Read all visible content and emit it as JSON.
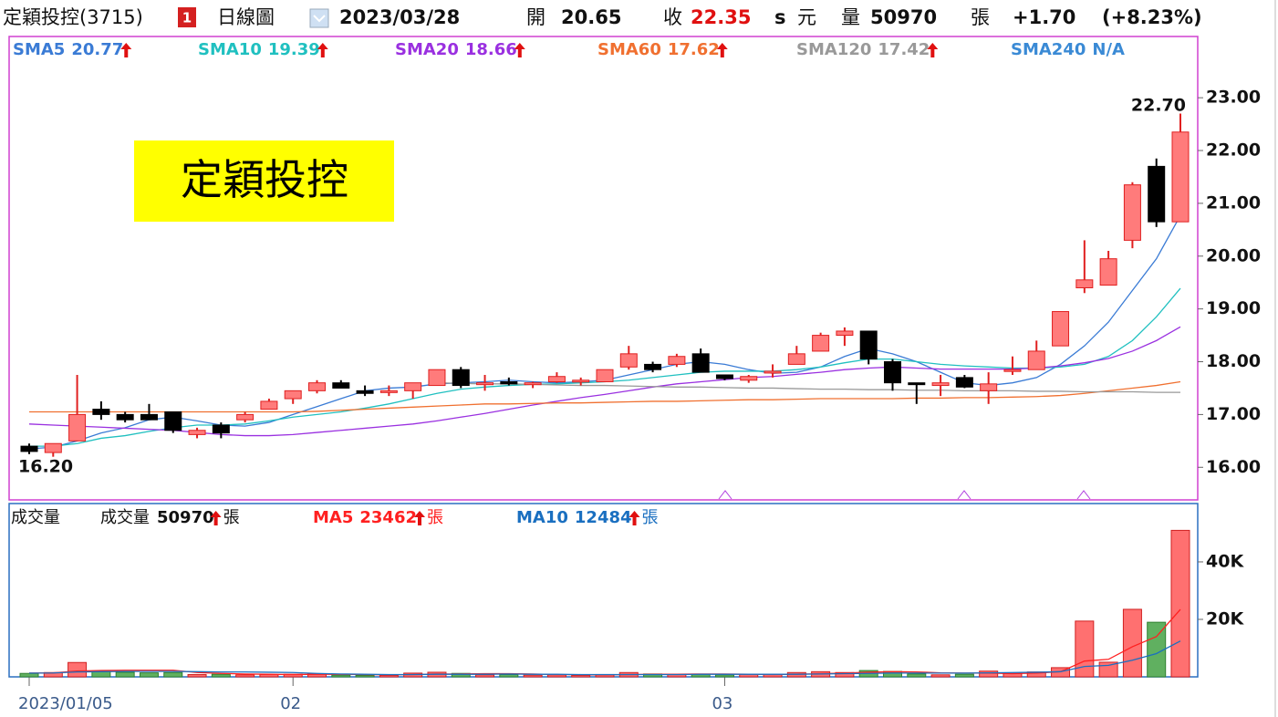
{
  "header": {
    "name": "定穎投控(3715)",
    "badge": "1",
    "period": "日線圖",
    "date": "2023/03/28",
    "open_label": "開",
    "open": "20.65",
    "close_label": "收",
    "close": "22.35",
    "s": "s",
    "currency": "元",
    "volume_label": "量",
    "volume": "50970",
    "volume_unit": "張",
    "change": "+1.70",
    "change_pct": "(+8.23%)"
  },
  "chart_data": [
    {
      "type": "candlestick",
      "annotation": "定穎投控",
      "high_label": "22.70",
      "low_label": "16.20",
      "up_color": "#ff7b7b",
      "up_edge": "#e02020",
      "down_color": "#000000",
      "categories": [
        "2023/01/05",
        null,
        null,
        null,
        null,
        null,
        null,
        null,
        null,
        null,
        null,
        "02",
        null,
        null,
        null,
        null,
        null,
        null,
        null,
        null,
        null,
        null,
        null,
        null,
        null,
        null,
        null,
        null,
        null,
        "03",
        null,
        null,
        null,
        null,
        null,
        null,
        null,
        null,
        null,
        null,
        null,
        null,
        null,
        null,
        null,
        null,
        null,
        null,
        null
      ],
      "open": [
        16.4,
        16.28,
        16.5,
        17.1,
        17.0,
        17.0,
        17.05,
        16.62,
        16.8,
        16.9,
        17.1,
        17.3,
        17.45,
        17.6,
        17.45,
        17.45,
        17.45,
        17.55,
        17.85,
        17.6,
        17.62,
        17.57,
        17.62,
        17.62,
        17.62,
        17.9,
        17.95,
        17.95,
        18.15,
        17.75,
        17.65,
        17.8,
        17.95,
        18.2,
        18.5,
        18.58,
        18.0,
        17.6,
        17.55,
        17.7,
        17.45,
        17.82,
        17.85,
        18.3,
        19.4,
        19.45,
        20.3,
        21.7,
        20.65
      ],
      "high": [
        16.45,
        16.45,
        17.75,
        17.25,
        17.05,
        17.2,
        17.05,
        16.75,
        16.85,
        17.05,
        17.3,
        17.45,
        17.65,
        17.65,
        17.55,
        17.55,
        17.6,
        17.85,
        17.9,
        17.75,
        17.7,
        17.62,
        17.8,
        17.7,
        17.85,
        18.3,
        18.0,
        18.15,
        18.25,
        17.75,
        17.75,
        17.95,
        18.3,
        18.55,
        18.65,
        18.58,
        18.05,
        17.6,
        17.75,
        17.75,
        17.8,
        18.1,
        18.4,
        18.95,
        20.3,
        20.1,
        21.4,
        21.85,
        22.7
      ],
      "low": [
        16.25,
        16.2,
        16.5,
        16.9,
        16.85,
        16.9,
        16.65,
        16.55,
        16.55,
        16.85,
        17.1,
        17.2,
        17.4,
        17.5,
        17.35,
        17.35,
        17.3,
        17.55,
        17.5,
        17.45,
        17.55,
        17.5,
        17.6,
        17.55,
        17.62,
        17.85,
        17.8,
        17.9,
        17.8,
        17.65,
        17.6,
        17.7,
        17.95,
        18.2,
        18.3,
        17.95,
        17.45,
        17.2,
        17.35,
        17.5,
        17.2,
        17.75,
        17.85,
        18.3,
        19.3,
        19.45,
        20.15,
        20.55,
        20.65
      ],
      "close": [
        16.3,
        16.45,
        17.0,
        17.0,
        16.9,
        16.9,
        16.7,
        16.7,
        16.65,
        17.0,
        17.25,
        17.45,
        17.6,
        17.5,
        17.4,
        17.45,
        17.6,
        17.85,
        17.55,
        17.6,
        17.58,
        17.6,
        17.72,
        17.65,
        17.85,
        18.15,
        17.85,
        18.1,
        17.8,
        17.68,
        17.72,
        17.82,
        18.15,
        18.5,
        18.58,
        18.05,
        17.6,
        17.58,
        17.6,
        17.52,
        17.58,
        17.85,
        18.2,
        18.95,
        19.55,
        19.95,
        21.35,
        20.65,
        22.35
      ],
      "series": [
        {
          "name": "SMA5",
          "value": "20.77",
          "color": "#3a7bd5",
          "values": [
            16.35,
            16.38,
            16.5,
            16.65,
            16.75,
            16.9,
            16.95,
            16.88,
            16.8,
            16.78,
            16.85,
            17.0,
            17.15,
            17.3,
            17.45,
            17.5,
            17.52,
            17.58,
            17.6,
            17.62,
            17.65,
            17.62,
            17.6,
            17.62,
            17.65,
            17.75,
            17.85,
            17.95,
            18.0,
            17.95,
            17.85,
            17.78,
            17.8,
            17.9,
            18.1,
            18.25,
            18.15,
            18.0,
            17.8,
            17.6,
            17.55,
            17.6,
            17.7,
            17.95,
            18.3,
            18.75,
            19.35,
            19.95,
            20.77
          ]
        },
        {
          "name": "SMA10",
          "value": "19.39",
          "color": "#20c0c0",
          "values": [
            16.4,
            16.4,
            16.45,
            16.55,
            16.6,
            16.68,
            16.75,
            16.8,
            16.8,
            16.82,
            16.88,
            16.95,
            17.0,
            17.05,
            17.12,
            17.2,
            17.3,
            17.4,
            17.48,
            17.52,
            17.55,
            17.57,
            17.58,
            17.6,
            17.62,
            17.65,
            17.7,
            17.75,
            17.8,
            17.82,
            17.82,
            17.82,
            17.85,
            17.9,
            17.98,
            18.05,
            18.05,
            18.0,
            17.95,
            17.92,
            17.9,
            17.88,
            17.88,
            17.9,
            17.95,
            18.1,
            18.4,
            18.85,
            19.39
          ]
        },
        {
          "name": "SMA20",
          "value": "18.66",
          "color": "#9a30e0",
          "values": [
            16.82,
            16.8,
            16.78,
            16.76,
            16.74,
            16.72,
            16.7,
            16.66,
            16.62,
            16.6,
            16.6,
            16.62,
            16.66,
            16.7,
            16.74,
            16.78,
            16.82,
            16.88,
            16.95,
            17.02,
            17.1,
            17.18,
            17.25,
            17.32,
            17.38,
            17.45,
            17.52,
            17.58,
            17.62,
            17.66,
            17.7,
            17.72,
            17.76,
            17.8,
            17.85,
            17.88,
            17.9,
            17.88,
            17.86,
            17.86,
            17.86,
            17.86,
            17.88,
            17.92,
            17.98,
            18.06,
            18.2,
            18.4,
            18.66
          ]
        },
        {
          "name": "SMA60",
          "value": "17.62",
          "color": "#f07030",
          "values": [
            17.05,
            17.05,
            17.05,
            17.05,
            17.05,
            17.05,
            17.05,
            17.05,
            17.05,
            17.05,
            17.05,
            17.05,
            17.06,
            17.08,
            17.1,
            17.12,
            17.14,
            17.16,
            17.18,
            17.2,
            17.2,
            17.21,
            17.22,
            17.22,
            17.23,
            17.24,
            17.25,
            17.25,
            17.26,
            17.27,
            17.28,
            17.28,
            17.29,
            17.3,
            17.3,
            17.3,
            17.3,
            17.31,
            17.31,
            17.32,
            17.32,
            17.33,
            17.34,
            17.36,
            17.4,
            17.45,
            17.5,
            17.55,
            17.62
          ]
        },
        {
          "name": "SMA120",
          "value": "17.42",
          "color": "#999999",
          "values": [
            null,
            null,
            null,
            null,
            null,
            null,
            null,
            null,
            null,
            null,
            null,
            null,
            null,
            null,
            null,
            null,
            null,
            17.6,
            17.59,
            17.58,
            17.58,
            17.57,
            17.56,
            17.55,
            17.55,
            17.54,
            17.53,
            17.52,
            17.52,
            17.51,
            17.5,
            17.5,
            17.49,
            17.48,
            17.48,
            17.47,
            17.47,
            17.46,
            17.46,
            17.45,
            17.45,
            17.45,
            17.44,
            17.44,
            17.43,
            17.43,
            17.43,
            17.42,
            17.42
          ]
        },
        {
          "name": "SMA240",
          "value": "N/A",
          "color": "#3a8ad5"
        }
      ],
      "ylim": [
        15.4,
        24.16
      ],
      "yticks": [
        {
          "value": 16,
          "label": "16.00"
        },
        {
          "value": 17,
          "label": "17.00"
        },
        {
          "value": 18,
          "label": "18.00"
        },
        {
          "value": 19,
          "label": "19.00"
        },
        {
          "value": 20,
          "label": "20.00"
        },
        {
          "value": 21,
          "label": "21.00"
        },
        {
          "value": 22,
          "label": "22.00"
        },
        {
          "value": 23,
          "label": "23.00"
        }
      ]
    },
    {
      "type": "bar",
      "title": "成交量",
      "legend_name": "成交量",
      "legend_value": "50970",
      "legend_unit": "張",
      "up_color": "#ff7070",
      "down_color": "#60b060",
      "values": [
        1200,
        1500,
        5000,
        2000,
        1600,
        1400,
        1500,
        800,
        900,
        700,
        800,
        900,
        1100,
        600,
        500,
        500,
        1300,
        1600,
        1200,
        700,
        800,
        600,
        700,
        500,
        800,
        1500,
        1000,
        900,
        900,
        700,
        900,
        800,
        1500,
        1800,
        1500,
        2200,
        1900,
        1000,
        700,
        900,
        2000,
        1200,
        1700,
        3200,
        19400,
        5100,
        23500,
        19000,
        50970
      ],
      "series": [
        {
          "name": "MA5",
          "value": "23462",
          "unit": "張",
          "color": "#ff2020",
          "values": [
            1300,
            1400,
            2000,
            2200,
            2300,
            2300,
            2300,
            1500,
            1200,
            1000,
            900,
            800,
            900,
            900,
            800,
            700,
            800,
            1000,
            1000,
            1100,
            1100,
            1000,
            800,
            700,
            700,
            800,
            900,
            900,
            1000,
            1000,
            900,
            800,
            900,
            1100,
            1300,
            1600,
            1800,
            1700,
            1400,
            1300,
            1300,
            1100,
            1300,
            1800,
            5500,
            6100,
            10500,
            14000,
            23462
          ]
        },
        {
          "name": "MA10",
          "value": "12484",
          "unit": "張",
          "color": "#1a6fc0",
          "values": [
            1300,
            1350,
            1700,
            1800,
            1900,
            1900,
            1900,
            1800,
            1700,
            1700,
            1600,
            1500,
            1200,
            1000,
            900,
            800,
            800,
            900,
            900,
            900,
            1000,
            900,
            900,
            800,
            800,
            800,
            800,
            800,
            900,
            900,
            900,
            900,
            900,
            1000,
            1100,
            1200,
            1300,
            1300,
            1300,
            1300,
            1400,
            1500,
            1600,
            1800,
            3600,
            4000,
            5800,
            8100,
            12484
          ]
        }
      ],
      "ylim": [
        0,
        60300
      ],
      "yticks": [
        {
          "value": 20000,
          "label": "20K"
        },
        {
          "value": 40000,
          "label": "40K"
        }
      ]
    }
  ]
}
